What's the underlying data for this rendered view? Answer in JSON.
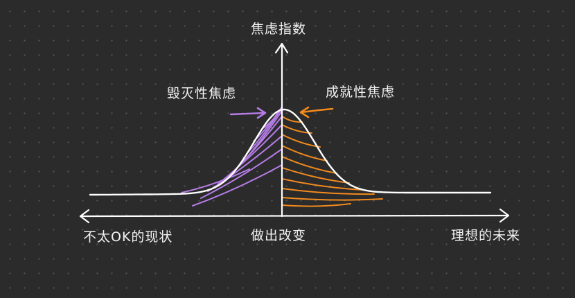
{
  "diagram": {
    "y_axis_title": "焦虑指数",
    "left_annotation": "毁灭性焦虑",
    "right_annotation": "成就性焦虑",
    "x_left_label": "不太OK的现状",
    "x_center_label": "做出改变",
    "x_right_label": "理想的未来"
  },
  "colors": {
    "background": "#2b2b2b",
    "line": "#ffffff",
    "destructive": "#b57ce6",
    "achievement": "#f28a1e"
  }
}
